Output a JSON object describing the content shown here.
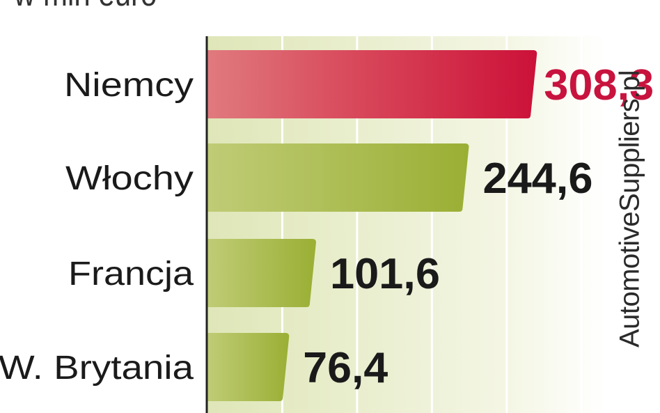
{
  "chart_data": {
    "type": "bar",
    "orientation": "horizontal",
    "subtitle": "w mln euro",
    "categories": [
      "Niemcy",
      "Włochy",
      "Francja",
      "W. Brytania"
    ],
    "values": [
      308.3,
      244.6,
      101.6,
      76.4
    ],
    "value_labels": [
      "308,3",
      "244,6",
      "101,6",
      "76,4"
    ],
    "highlight_index": 0,
    "xlim": [
      0,
      400
    ],
    "grid": true,
    "source": "AutomotiveSuppliers.pl",
    "colors": {
      "highlight": "#cf1f43",
      "bar": "#a3b540",
      "highlight_label": "#c8133e",
      "label": "#1a1a1a",
      "background": "#f1f4dc"
    }
  }
}
